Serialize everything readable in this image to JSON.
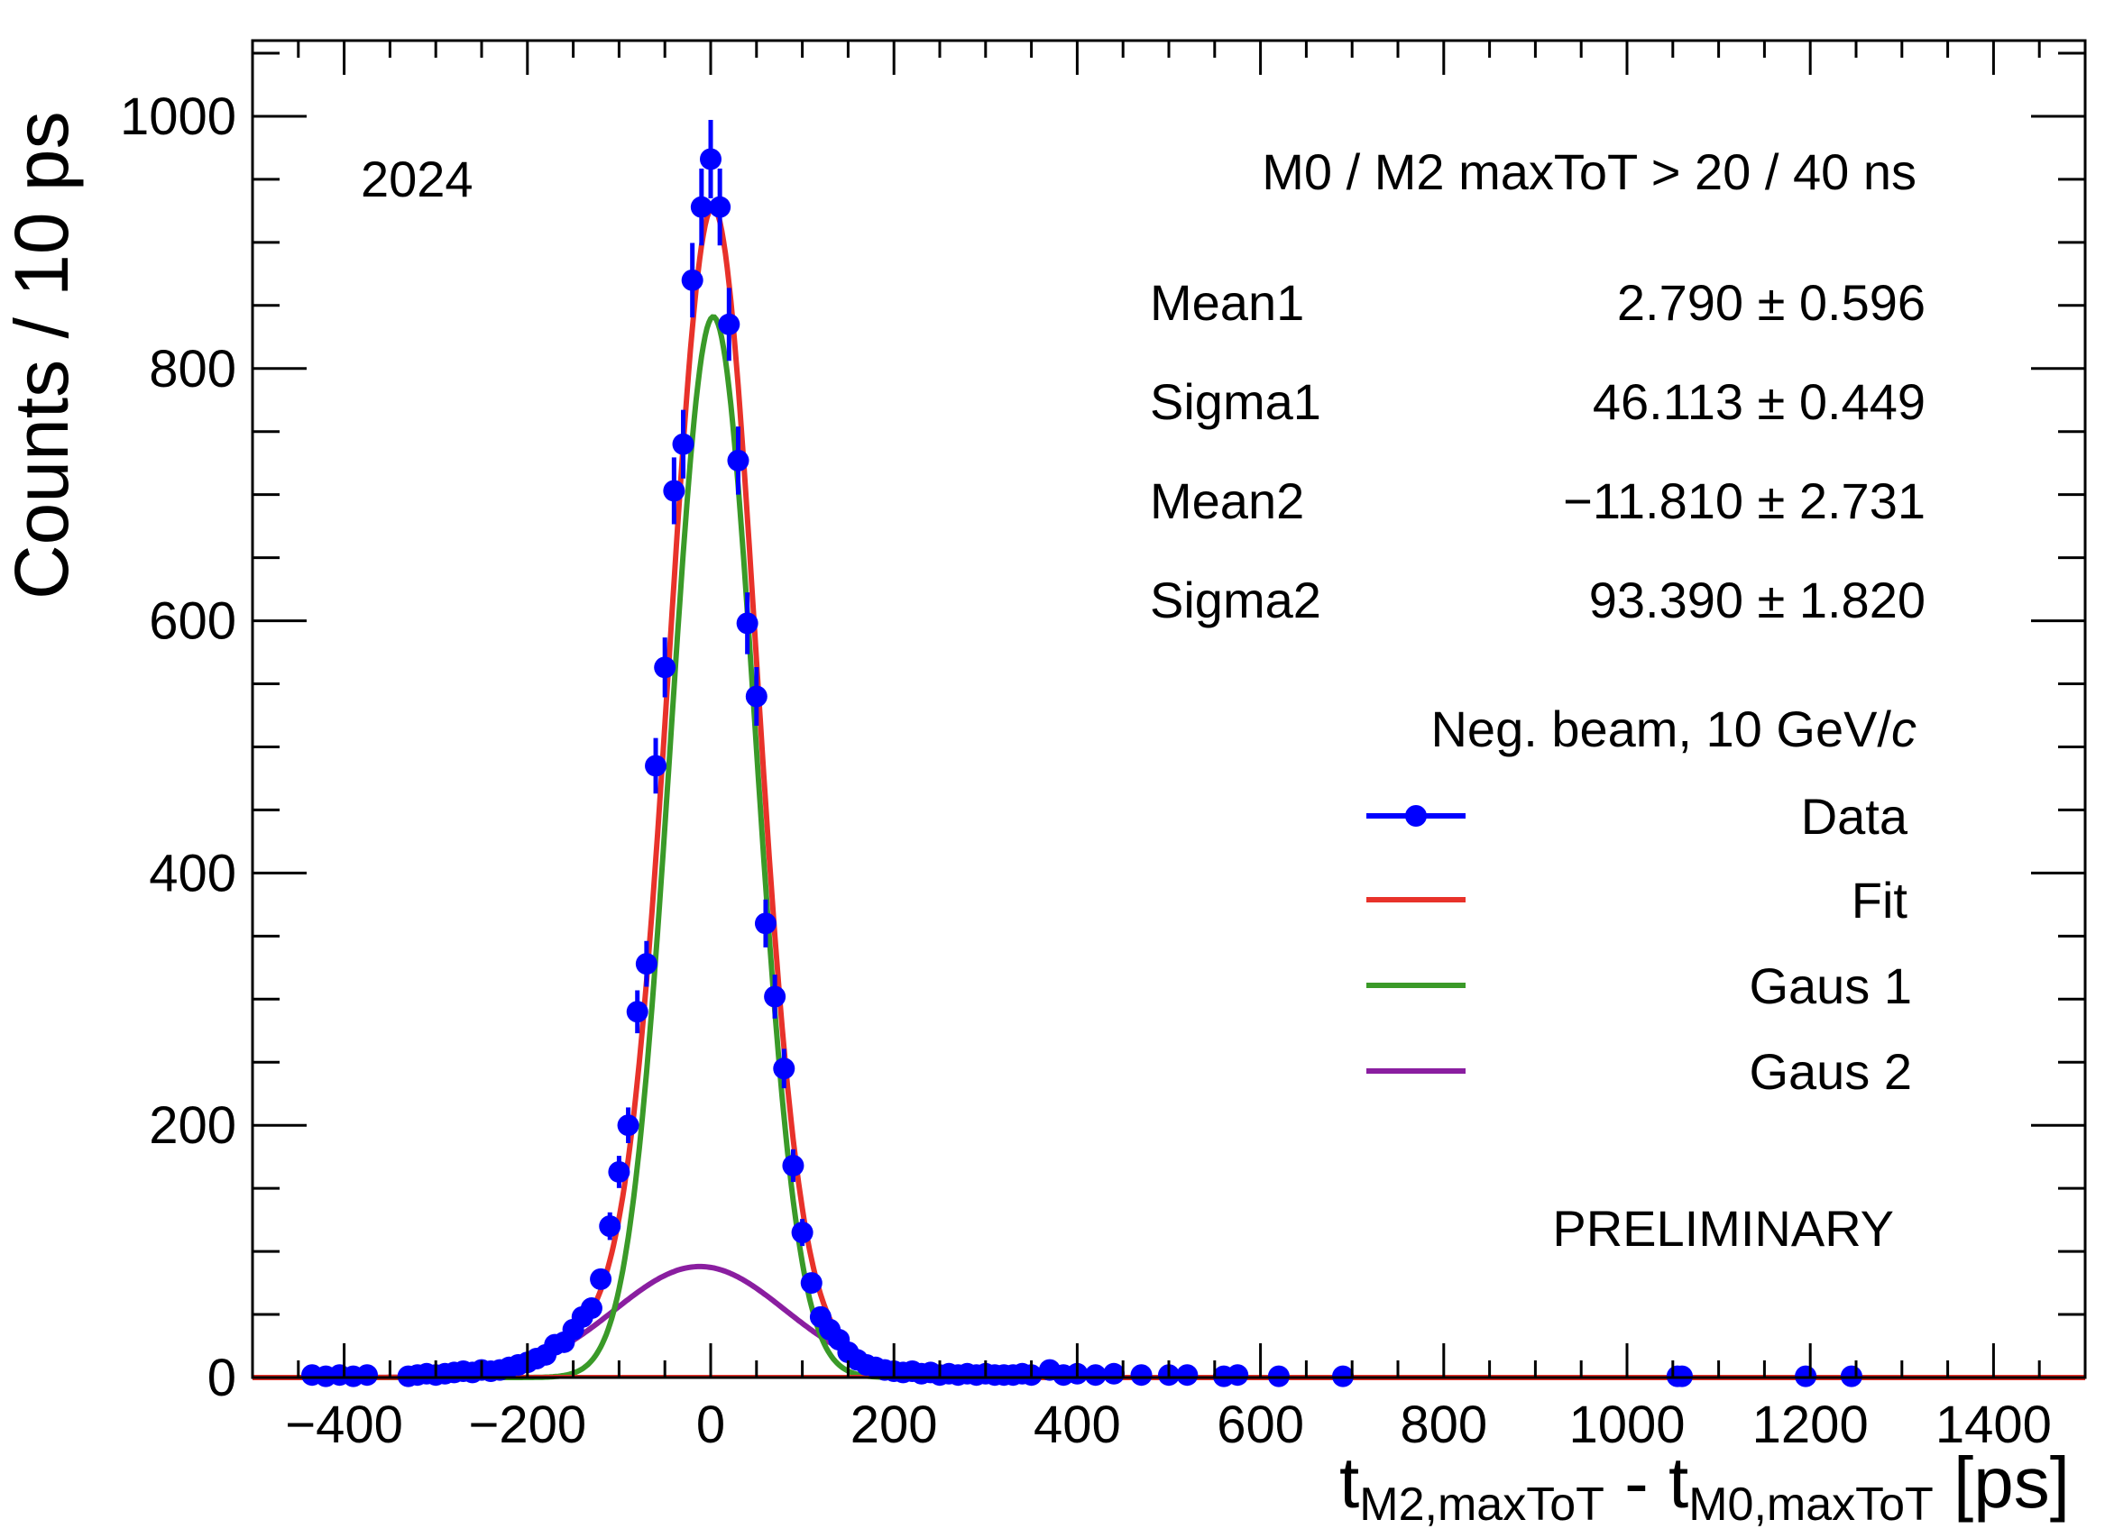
{
  "chart_data": {
    "type": "scatter",
    "title": "",
    "year_label": "2024",
    "selection_label": "M0 / M2 maxToT > 20 / 40 ns",
    "beam_label_prefix": "Neg. beam, 10 GeV/",
    "beam_label_italic": "c",
    "status_label": "PRELIMINARY",
    "ylabel": "Counts / 10 ps",
    "xlabel": {
      "t1": "t",
      "sub1": "M2,maxToT",
      "sep": " - ",
      "t2": "t",
      "sub2": "M0,maxToT",
      "unit": " [ps]"
    },
    "xlim": [
      -500,
      1500
    ],
    "ylim": [
      0,
      1060
    ],
    "xticks": [
      -400,
      -200,
      0,
      200,
      400,
      600,
      800,
      1000,
      1200,
      1400
    ],
    "xtick_labels": [
      "−400",
      "−200",
      "0",
      "200",
      "400",
      "600",
      "800",
      "1000",
      "1200",
      "1400"
    ],
    "yticks": [
      0,
      200,
      400,
      600,
      800,
      1000
    ],
    "ytick_labels": [
      "0",
      "200",
      "400",
      "600",
      "800",
      "1000"
    ],
    "stats": [
      {
        "name": "Mean1",
        "value": "2.790 ± 0.596"
      },
      {
        "name": "Sigma1",
        "value": "46.113 ± 0.449"
      },
      {
        "name": "Mean2",
        "value": "−11.810 ± 2.731"
      },
      {
        "name": "Sigma2",
        "value": "93.390 ± 1.820"
      }
    ],
    "fit_params": {
      "g1": {
        "amplitude": 841,
        "mean": 2.79,
        "sigma": 46.113
      },
      "g2": {
        "amplitude": 88,
        "mean": -11.81,
        "sigma": 93.39
      }
    },
    "series": [
      {
        "name": "Data",
        "color": "#0000ff",
        "points": [
          [
            -435,
            2
          ],
          [
            -420,
            1
          ],
          [
            -405,
            2
          ],
          [
            -390,
            1
          ],
          [
            -375,
            2
          ],
          [
            -330,
            1
          ],
          [
            -320,
            2
          ],
          [
            -310,
            3
          ],
          [
            -300,
            2
          ],
          [
            -290,
            3
          ],
          [
            -280,
            4
          ],
          [
            -270,
            5
          ],
          [
            -260,
            4
          ],
          [
            -250,
            6
          ],
          [
            -240,
            5
          ],
          [
            -230,
            6
          ],
          [
            -220,
            8
          ],
          [
            -210,
            10
          ],
          [
            -200,
            12
          ],
          [
            -190,
            15
          ],
          [
            -180,
            18
          ],
          [
            -170,
            26
          ],
          [
            -160,
            28
          ],
          [
            -150,
            38
          ],
          [
            -140,
            48
          ],
          [
            -130,
            55
          ],
          [
            -120,
            78
          ],
          [
            -110,
            120
          ],
          [
            -100,
            163
          ],
          [
            -90,
            200
          ],
          [
            -80,
            290
          ],
          [
            -70,
            328
          ],
          [
            -60,
            485
          ],
          [
            -50,
            563
          ],
          [
            -40,
            703
          ],
          [
            -30,
            740
          ],
          [
            -20,
            870
          ],
          [
            -10,
            928
          ],
          [
            0,
            966
          ],
          [
            10,
            928
          ],
          [
            20,
            835
          ],
          [
            30,
            727
          ],
          [
            40,
            598
          ],
          [
            50,
            540
          ],
          [
            60,
            360
          ],
          [
            70,
            302
          ],
          [
            80,
            245
          ],
          [
            90,
            168
          ],
          [
            100,
            115
          ],
          [
            110,
            75
          ],
          [
            120,
            48
          ],
          [
            130,
            38
          ],
          [
            140,
            30
          ],
          [
            150,
            20
          ],
          [
            160,
            14
          ],
          [
            170,
            10
          ],
          [
            180,
            8
          ],
          [
            190,
            6
          ],
          [
            200,
            5
          ],
          [
            210,
            4
          ],
          [
            220,
            5
          ],
          [
            230,
            3
          ],
          [
            240,
            4
          ],
          [
            250,
            2
          ],
          [
            260,
            3
          ],
          [
            270,
            2
          ],
          [
            280,
            3
          ],
          [
            290,
            2
          ],
          [
            300,
            3
          ],
          [
            310,
            2
          ],
          [
            320,
            2
          ],
          [
            330,
            2
          ],
          [
            340,
            3
          ],
          [
            350,
            2
          ],
          [
            370,
            6
          ],
          [
            385,
            2
          ],
          [
            400,
            3
          ],
          [
            420,
            2
          ],
          [
            440,
            3
          ],
          [
            470,
            2
          ],
          [
            500,
            2
          ],
          [
            520,
            2
          ],
          [
            560,
            1
          ],
          [
            575,
            2
          ],
          [
            620,
            1
          ],
          [
            690,
            1
          ],
          [
            1055,
            1
          ],
          [
            1060,
            1
          ],
          [
            1195,
            1
          ],
          [
            1245,
            1
          ]
        ]
      },
      {
        "name": "Fit",
        "color": "#e8322a"
      },
      {
        "name": "Gaus 1",
        "color": "#3a9a28"
      },
      {
        "name": "Gaus 2",
        "color": "#8a1ea0"
      }
    ]
  }
}
